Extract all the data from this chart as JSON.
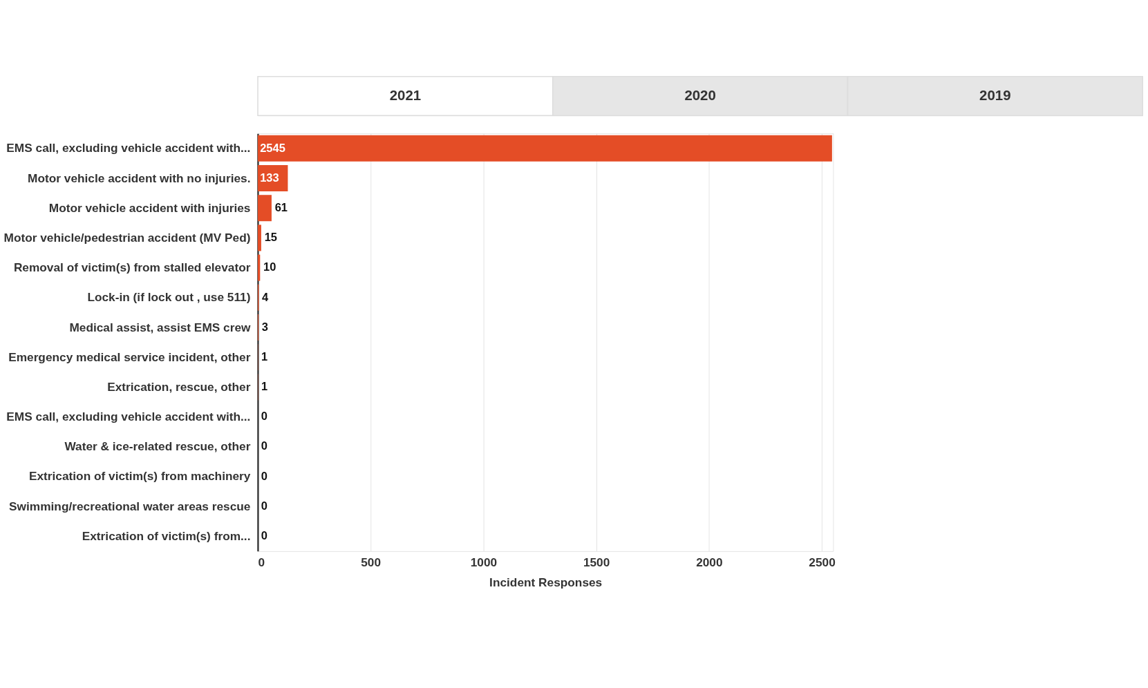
{
  "chart_data": {
    "type": "bar",
    "orientation": "horizontal",
    "xlabel": "Incident Responses",
    "annotations": [
      "2021",
      "2020",
      "2019"
    ],
    "categories": [
      "EMS call, excluding vehicle accident with...",
      "Motor vehicle accident with no injuries.",
      "Motor vehicle accident with injuries",
      "Motor vehicle/pedestrian accident (MV Ped)",
      "Removal of victim(s) from stalled elevator",
      "Lock-in (if lock out , use 511)",
      "Medical assist, assist EMS crew",
      "Emergency medical service incident, other",
      "Extrication, rescue, other",
      "EMS call, excluding vehicle accident with...",
      "Water & ice-related rescue, other",
      "Extrication of victim(s) from machinery",
      "Swimming/recreational water areas rescue",
      "Extrication of victim(s) from..."
    ],
    "values": [
      2545,
      133,
      61,
      15,
      10,
      4,
      3,
      1,
      1,
      0,
      0,
      0,
      0,
      0
    ],
    "color": "#e44d26",
    "data_labels": true,
    "grid": "x",
    "xlim": [
      0,
      2550
    ],
    "xticks": [
      0,
      500,
      1000,
      1500,
      2000,
      2500
    ]
  }
}
